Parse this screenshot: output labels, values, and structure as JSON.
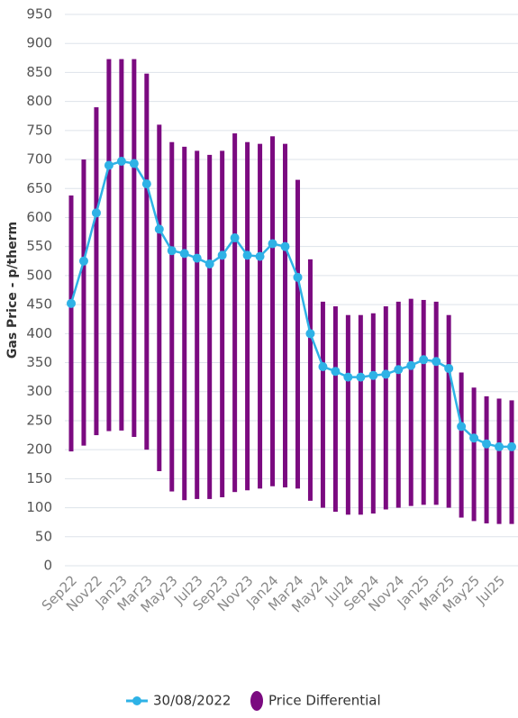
{
  "chart_data": {
    "type": "bar",
    "y_label": "Gas Price - p/therm",
    "categories": [
      "Sep22",
      null,
      "Nov22",
      null,
      "Jan23",
      null,
      "Mar23",
      null,
      "May23",
      null,
      "Jul23",
      null,
      "Sep23",
      null,
      "Nov23",
      null,
      "Jan24",
      null,
      "Mar24",
      null,
      "May24",
      null,
      "Jul24",
      null,
      "Sep24",
      null,
      "Nov24",
      null,
      "Jan25",
      null,
      "Mar25",
      null,
      "May25",
      null,
      "Jul25",
      null
    ],
    "series": [
      {
        "name": "30/08/2022",
        "type": "line",
        "color": "#2eb2e6",
        "values": [
          452,
          525,
          608,
          690,
          697,
          693,
          658,
          580,
          543,
          538,
          530,
          520,
          535,
          565,
          535,
          533,
          555,
          550,
          497,
          400,
          343,
          335,
          325,
          325,
          328,
          330,
          338,
          345,
          355,
          352,
          340,
          240,
          220,
          210,
          205,
          205
        ]
      },
      {
        "name": "Price Differential",
        "type": "range",
        "color": "#7b0a80",
        "low": [
          197,
          207,
          225,
          232,
          233,
          222,
          200,
          163,
          128,
          113,
          115,
          115,
          118,
          127,
          130,
          133,
          137,
          135,
          133,
          112,
          100,
          93,
          88,
          88,
          90,
          97,
          100,
          103,
          105,
          105,
          100,
          83,
          77,
          73,
          72,
          72
        ],
        "high": [
          638,
          700,
          790,
          873,
          873,
          873,
          848,
          760,
          730,
          722,
          715,
          708,
          715,
          745,
          730,
          727,
          740,
          727,
          665,
          528,
          455,
          447,
          432,
          432,
          435,
          447,
          455,
          460,
          458,
          455,
          432,
          333,
          307,
          292,
          288,
          285
        ]
      }
    ],
    "ylim": [
      0,
      950
    ],
    "yticks": [
      0,
      50,
      100,
      150,
      200,
      250,
      300,
      350,
      400,
      450,
      500,
      550,
      600,
      650,
      700,
      750,
      800,
      850,
      900,
      950
    ],
    "grid": true,
    "legend": "bottom"
  }
}
